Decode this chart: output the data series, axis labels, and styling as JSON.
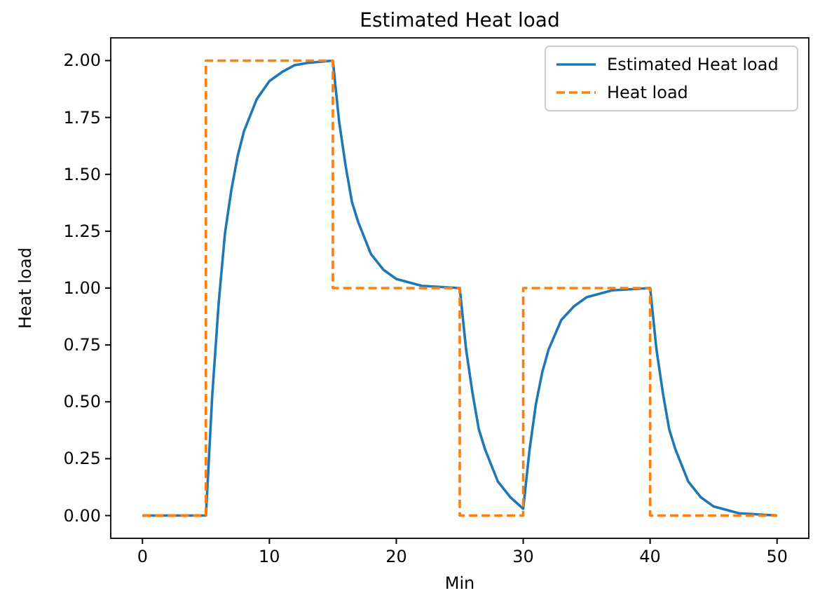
{
  "chart_data": {
    "type": "line",
    "title": "Estimated Heat load",
    "xlabel": "Min",
    "ylabel": "Heat load",
    "xlim": [
      -2.5,
      52.5
    ],
    "ylim": [
      -0.1,
      2.1
    ],
    "xticks": [
      0,
      10,
      20,
      30,
      40,
      50
    ],
    "yticks": [
      {
        "value": 0,
        "label": "0.00"
      },
      {
        "value": 0.25,
        "label": "0.25"
      },
      {
        "value": 0.5,
        "label": "0.50"
      },
      {
        "value": 0.75,
        "label": "0.75"
      },
      {
        "value": 1,
        "label": "1.00"
      },
      {
        "value": 1.25,
        "label": "1.25"
      },
      {
        "value": 1.5,
        "label": "1.50"
      },
      {
        "value": 1.75,
        "label": "1.75"
      },
      {
        "value": 2,
        "label": "2.00"
      }
    ],
    "grid": false,
    "legend": "top right",
    "marker": "none",
    "series": [
      {
        "name": "Estimated Heat load",
        "color": "#1f77b4",
        "line_style": "solid",
        "x": [
          0,
          5,
          5.5,
          6,
          6.5,
          7,
          7.5,
          8,
          9,
          10,
          11,
          12,
          13,
          15,
          15.5,
          16,
          16.5,
          17,
          18,
          19,
          20,
          22,
          25,
          25.5,
          26,
          26.5,
          27,
          28,
          29,
          30,
          30.5,
          31,
          31.5,
          32,
          33,
          34,
          35,
          37,
          40,
          40.5,
          41,
          41.5,
          42,
          43,
          44,
          45,
          47,
          50
        ],
        "values": [
          0,
          0,
          0.53,
          0.93,
          1.24,
          1.43,
          1.58,
          1.69,
          1.83,
          1.91,
          1.95,
          1.98,
          1.99,
          2,
          1.73,
          1.54,
          1.38,
          1.29,
          1.15,
          1.08,
          1.04,
          1.01,
          1,
          0.73,
          0.54,
          0.38,
          0.29,
          0.15,
          0.08,
          0.03,
          0.29,
          0.49,
          0.63,
          0.73,
          0.86,
          0.92,
          0.96,
          0.99,
          1,
          0.73,
          0.54,
          0.38,
          0.29,
          0.15,
          0.08,
          0.04,
          0.01,
          0
        ]
      },
      {
        "name": "Heat load",
        "color": "#ff7f0e",
        "line_style": "dashed",
        "x": [
          0,
          5,
          5,
          15,
          15,
          25,
          25,
          30,
          30,
          40,
          40,
          50
        ],
        "values": [
          0,
          0,
          2,
          2,
          1,
          1,
          0,
          0,
          1,
          1,
          0,
          0
        ]
      }
    ]
  }
}
